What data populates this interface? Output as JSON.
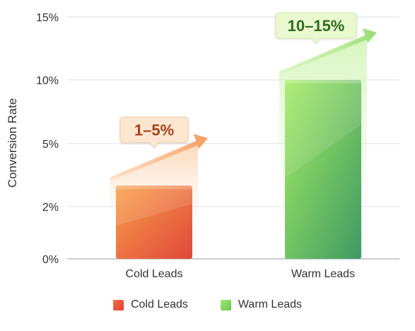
{
  "chart_data": {
    "type": "bar",
    "ylabel": "Conversion Rate",
    "xlabel": "",
    "ylim": [
      0,
      15
    ],
    "y_ticks": [
      {
        "value": 0,
        "label": "0%"
      },
      {
        "value": 2,
        "label": "2%"
      },
      {
        "value": 5,
        "label": "5%"
      },
      {
        "value": 10,
        "label": "10%"
      },
      {
        "value": 15,
        "label": "15%"
      }
    ],
    "categories": [
      "Cold Leads",
      "Warm Leads"
    ],
    "values": [
      3,
      10
    ],
    "callouts": [
      "1–5%",
      "10–15%"
    ],
    "grid": true,
    "legend_position": "bottom",
    "colors": {
      "cold_top": "#f9a04a",
      "cold_bottom": "#e0473a",
      "cold_callout_bg": "#fde6cf",
      "cold_callout_text": "#a8421e",
      "warm_top": "#a4ec63",
      "warm_bottom": "#3f9a63",
      "warm_callout_bg": "#e9f8cf",
      "warm_callout_text": "#2f6b1f"
    }
  },
  "legend": [
    {
      "label": "Cold Leads",
      "color": "#ec5b3e"
    },
    {
      "label": "Warm Leads",
      "color": "#7fd85c"
    }
  ]
}
